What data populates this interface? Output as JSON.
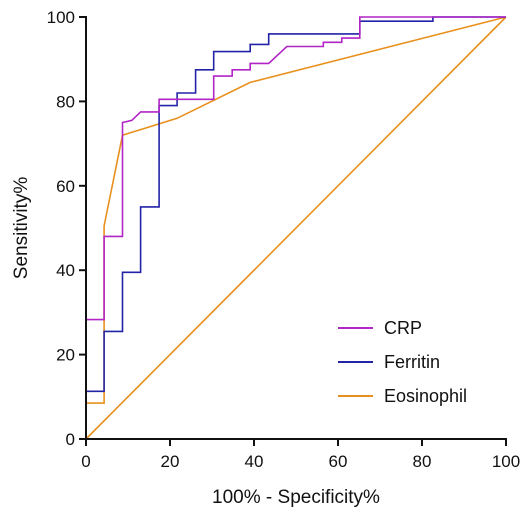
{
  "chart_data": {
    "type": "line",
    "title": "",
    "xlabel": "100% - Specificity%",
    "ylabel": "Sensitivity%",
    "xlim": [
      0,
      100
    ],
    "ylim": [
      0,
      100
    ],
    "xticks": [
      0,
      20,
      40,
      60,
      80,
      100
    ],
    "yticks": [
      0,
      20,
      40,
      60,
      80,
      100
    ],
    "grid": false,
    "legend_position": "bottom-right",
    "series": [
      {
        "name": "CRP",
        "color": "#b125c6",
        "points": [
          [
            0,
            0
          ],
          [
            0,
            28.3
          ],
          [
            4.3,
            28.3
          ],
          [
            4.3,
            48
          ],
          [
            8.7,
            48
          ],
          [
            8.7,
            75
          ],
          [
            10.9,
            75.5
          ],
          [
            13,
            77.5
          ],
          [
            17.4,
            77.5
          ],
          [
            17.4,
            80.5
          ],
          [
            26.1,
            80.5
          ],
          [
            30.4,
            80.5
          ],
          [
            30.4,
            86
          ],
          [
            34.8,
            86
          ],
          [
            34.8,
            87.5
          ],
          [
            39.1,
            87.5
          ],
          [
            39.1,
            89
          ],
          [
            43.5,
            89
          ],
          [
            47.8,
            93
          ],
          [
            56.5,
            93
          ],
          [
            56.5,
            94
          ],
          [
            60.9,
            94
          ],
          [
            60.9,
            95
          ],
          [
            65.2,
            95
          ],
          [
            65.2,
            100
          ],
          [
            100,
            100
          ]
        ]
      },
      {
        "name": "Ferritin",
        "color": "#2323a8",
        "points": [
          [
            0,
            0
          ],
          [
            0,
            11.3
          ],
          [
            4.3,
            11.3
          ],
          [
            4.3,
            25.5
          ],
          [
            8.7,
            25.5
          ],
          [
            8.7,
            39.5
          ],
          [
            13,
            39.5
          ],
          [
            13,
            55
          ],
          [
            17.4,
            55
          ],
          [
            17.4,
            79
          ],
          [
            21.7,
            79
          ],
          [
            21.7,
            82
          ],
          [
            26.1,
            82
          ],
          [
            26.1,
            87.5
          ],
          [
            30.4,
            87.5
          ],
          [
            30.4,
            91.8
          ],
          [
            39.1,
            91.8
          ],
          [
            39.1,
            93.5
          ],
          [
            43.5,
            93.5
          ],
          [
            43.5,
            96
          ],
          [
            65.2,
            96
          ],
          [
            65.2,
            99
          ],
          [
            82.6,
            99
          ],
          [
            82.6,
            100
          ],
          [
            100,
            100
          ]
        ]
      },
      {
        "name": "Eosinophil",
        "color": "#e8901d",
        "points": [
          [
            0,
            0
          ],
          [
            0,
            8.5
          ],
          [
            4.3,
            8.5
          ],
          [
            4.3,
            50.5
          ],
          [
            8.7,
            72
          ],
          [
            21.7,
            76
          ],
          [
            39.1,
            84.5
          ],
          [
            100,
            100
          ]
        ]
      }
    ],
    "reference_line": {
      "color": "#e8901d",
      "points": [
        [
          0,
          0
        ],
        [
          100,
          100
        ]
      ]
    }
  }
}
